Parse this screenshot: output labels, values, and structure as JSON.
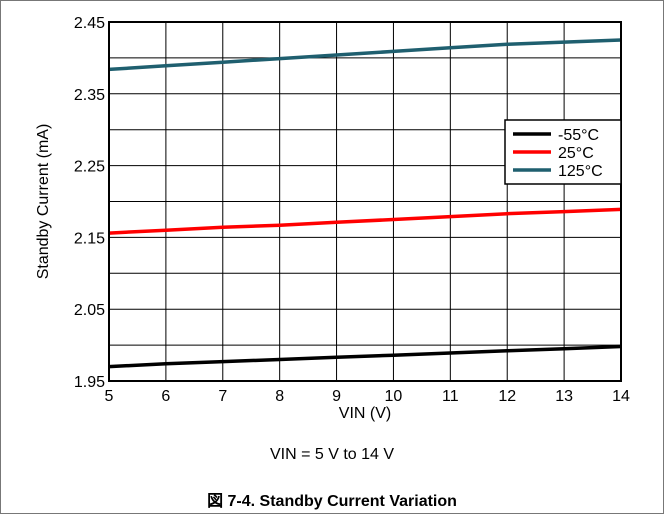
{
  "chart_data": {
    "type": "line",
    "xlabel": "VIN (V)",
    "ylabel": "Standby Current (mA)",
    "xlim": [
      5,
      14
    ],
    "ylim": [
      1.95,
      2.45
    ],
    "x_ticks": [
      5,
      6,
      7,
      8,
      9,
      10,
      11,
      12,
      13,
      14
    ],
    "y_ticks": [
      1.95,
      2.05,
      2.15,
      2.25,
      2.35,
      2.45
    ],
    "y_tick_labels": [
      "1.95",
      "2.05",
      "2.15",
      "2.25",
      "2.35",
      "2.45"
    ],
    "grid": true,
    "legend_position": "right",
    "x": [
      5,
      6,
      7,
      8,
      9,
      10,
      11,
      12,
      13,
      14
    ],
    "series": [
      {
        "name": "-55°C",
        "color": "#000000",
        "values": [
          1.97,
          1.974,
          1.977,
          1.98,
          1.983,
          1.986,
          1.989,
          1.992,
          1.995,
          1.998
        ]
      },
      {
        "name": "25°C",
        "color": "#ff0000",
        "values": [
          2.156,
          2.16,
          2.164,
          2.167,
          2.171,
          2.175,
          2.179,
          2.183,
          2.186,
          2.189
        ]
      },
      {
        "name": "125°C",
        "color": "#1f5f6f",
        "values": [
          2.384,
          2.389,
          2.394,
          2.399,
          2.404,
          2.409,
          2.414,
          2.419,
          2.422,
          2.425
        ]
      }
    ]
  },
  "note": "VIN = 5 V to 14 V",
  "caption": "図 7-4. Standby Current Variation"
}
